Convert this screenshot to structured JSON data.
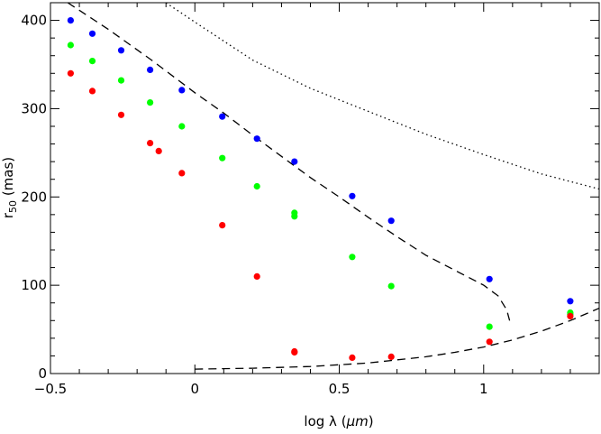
{
  "chart_data": {
    "type": "scatter",
    "title": "",
    "xlabel": {
      "prefix": "log λ (",
      "unit": "μm",
      "suffix": ")"
    },
    "ylabel": {
      "base": "r",
      "sub": "50",
      "rest": " (mas)"
    },
    "xlim": [
      -0.5,
      1.4
    ],
    "ylim": [
      0,
      420
    ],
    "xticks": [
      -0.5,
      0,
      0.5,
      1
    ],
    "xtick_labels": [
      "−0.5",
      "0",
      "0.5",
      "1"
    ],
    "yticks": [
      0,
      100,
      200,
      300,
      400
    ],
    "ytick_labels": [
      "0",
      "100",
      "200",
      "300",
      "400"
    ],
    "grid": false,
    "series": [
      {
        "color": "#0000ff",
        "points": [
          [
            -0.43,
            400
          ],
          [
            -0.355,
            385
          ],
          [
            -0.255,
            366
          ],
          [
            -0.155,
            344
          ],
          [
            -0.045,
            321
          ],
          [
            0.095,
            291
          ],
          [
            0.215,
            266
          ],
          [
            0.345,
            240
          ],
          [
            0.545,
            201
          ],
          [
            0.68,
            173
          ],
          [
            1.02,
            107
          ],
          [
            1.3,
            82
          ]
        ]
      },
      {
        "color": "#00ff00",
        "points": [
          [
            -0.43,
            372
          ],
          [
            -0.355,
            354
          ],
          [
            -0.255,
            332
          ],
          [
            -0.155,
            307
          ],
          [
            -0.045,
            280
          ],
          [
            0.095,
            244
          ],
          [
            0.215,
            212
          ],
          [
            0.345,
            182
          ],
          [
            0.345,
            178
          ],
          [
            0.545,
            132
          ],
          [
            0.68,
            99
          ],
          [
            1.02,
            53
          ],
          [
            1.3,
            69
          ],
          [
            1.3,
            67
          ]
        ]
      },
      {
        "color": "#ff0000",
        "points": [
          [
            -0.43,
            340
          ],
          [
            -0.355,
            320
          ],
          [
            -0.255,
            293
          ],
          [
            -0.155,
            261
          ],
          [
            -0.125,
            252
          ],
          [
            -0.045,
            227
          ],
          [
            0.095,
            168
          ],
          [
            0.215,
            110
          ],
          [
            0.345,
            25
          ],
          [
            0.345,
            24
          ],
          [
            0.545,
            18
          ],
          [
            0.68,
            19
          ],
          [
            1.02,
            36
          ],
          [
            1.3,
            65
          ]
        ]
      }
    ],
    "curves": [
      {
        "style": "dashed",
        "points": [
          [
            -0.44,
            420
          ],
          [
            -0.3,
            390
          ],
          [
            -0.15,
            355
          ],
          [
            0.0,
            318
          ],
          [
            0.1,
            295
          ],
          [
            0.2,
            270
          ],
          [
            0.3,
            246
          ],
          [
            0.4,
            222
          ],
          [
            0.5,
            200
          ],
          [
            0.6,
            177
          ],
          [
            0.7,
            155
          ],
          [
            0.8,
            134
          ],
          [
            0.9,
            117
          ],
          [
            1.0,
            100
          ],
          [
            1.05,
            88
          ],
          [
            1.08,
            72
          ],
          [
            1.09,
            60
          ]
        ]
      },
      {
        "style": "dashed",
        "points": [
          [
            0.0,
            5
          ],
          [
            0.2,
            6
          ],
          [
            0.4,
            8
          ],
          [
            0.6,
            12
          ],
          [
            0.8,
            19
          ],
          [
            0.9,
            24
          ],
          [
            1.0,
            30
          ],
          [
            1.1,
            38
          ],
          [
            1.2,
            48
          ],
          [
            1.3,
            60
          ],
          [
            1.4,
            74
          ]
        ]
      },
      {
        "style": "dotted",
        "points": [
          [
            -0.1,
            420
          ],
          [
            0.0,
            398
          ],
          [
            0.2,
            355
          ],
          [
            0.4,
            323
          ],
          [
            0.6,
            297
          ],
          [
            0.8,
            271
          ],
          [
            1.0,
            248
          ],
          [
            1.2,
            226
          ],
          [
            1.4,
            209
          ]
        ]
      }
    ]
  }
}
